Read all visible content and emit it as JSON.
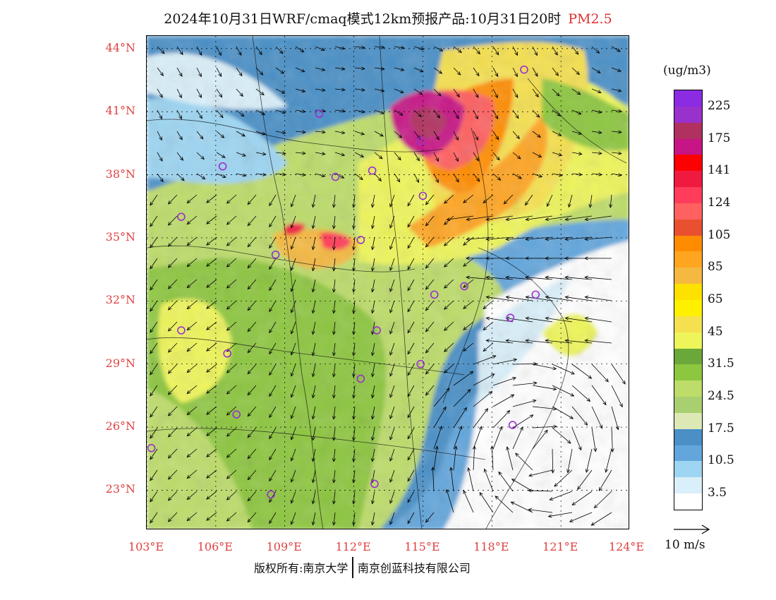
{
  "header": {
    "title": "2024年10月31日WRF/cmaq模式12km预报产品:10月31日20时",
    "pollutant": "PM2.5"
  },
  "map": {
    "lat_labels": [
      "44°N",
      "41°N",
      "38°N",
      "35°N",
      "32°N",
      "29°N",
      "26°N",
      "23°N"
    ],
    "lon_labels": [
      "103°E",
      "106°E",
      "109°E",
      "112°E",
      "115°E",
      "118°E",
      "121°E",
      "124°E"
    ],
    "lat_values": [
      44,
      41,
      38,
      35,
      32,
      29,
      26,
      23
    ],
    "lon_values": [
      103,
      106,
      109,
      112,
      115,
      118,
      121,
      124
    ],
    "extent": {
      "lon_min": 103,
      "lon_max": 124,
      "lat_min": 21.1,
      "lat_max": 44.6
    },
    "stations": [
      [
        119.4,
        43.0
      ],
      [
        110.5,
        40.9
      ],
      [
        114.9,
        39.6
      ],
      [
        106.3,
        38.4
      ],
      [
        111.2,
        37.9
      ],
      [
        112.8,
        38.2
      ],
      [
        115.0,
        37.0
      ],
      [
        104.5,
        36.0
      ],
      [
        112.3,
        34.9
      ],
      [
        108.6,
        34.2
      ],
      [
        115.5,
        32.3
      ],
      [
        116.8,
        32.7
      ],
      [
        119.9,
        32.3
      ],
      [
        118.8,
        31.2
      ],
      [
        104.5,
        30.6
      ],
      [
        113.0,
        30.6
      ],
      [
        106.5,
        29.5
      ],
      [
        114.9,
        29.0
      ],
      [
        112.3,
        28.3
      ],
      [
        118.9,
        26.1
      ],
      [
        106.9,
        26.6
      ],
      [
        103.2,
        25.0
      ],
      [
        108.4,
        22.8
      ],
      [
        112.9,
        23.3
      ]
    ],
    "colors": {
      "sea_clean": "#ffffff",
      "low_blue": "#4a8fc6",
      "green": "#8fc43e",
      "yellow": "#fff040",
      "orange": "#f5a020",
      "red": "#e82020",
      "purple": "#8a2ad0",
      "station_ring": "#9a30d0",
      "label_red": "#e04040"
    }
  },
  "legend": {
    "unit": "(ug/m3)",
    "bins": [
      {
        "color": "#8b2be2",
        "label": "225"
      },
      {
        "color": "#9932cc",
        "label": ""
      },
      {
        "color": "#b03060",
        "label": "175"
      },
      {
        "color": "#c71585",
        "label": ""
      },
      {
        "color": "#ff0000",
        "label": "141"
      },
      {
        "color": "#f01a40",
        "label": ""
      },
      {
        "color": "#ff3c5a",
        "label": "124"
      },
      {
        "color": "#ff6060",
        "label": ""
      },
      {
        "color": "#e85030",
        "label": "105"
      },
      {
        "color": "#ff8c00",
        "label": ""
      },
      {
        "color": "#ffa520",
        "label": "85"
      },
      {
        "color": "#f5b841",
        "label": ""
      },
      {
        "color": "#ffe100",
        "label": "65"
      },
      {
        "color": "#fff000",
        "label": ""
      },
      {
        "color": "#f5e050",
        "label": "45"
      },
      {
        "color": "#eef55a",
        "label": ""
      },
      {
        "color": "#6aa83a",
        "label": "31.5"
      },
      {
        "color": "#8dc63f",
        "label": ""
      },
      {
        "color": "#bddc6a",
        "label": "24.5"
      },
      {
        "color": "#a8d070",
        "label": ""
      },
      {
        "color": "#dde9b5",
        "label": "17.5"
      },
      {
        "color": "#4a8fc6",
        "label": ""
      },
      {
        "color": "#62a6dc",
        "label": "10.5"
      },
      {
        "color": "#9dd5f2",
        "label": ""
      },
      {
        "color": "#d9eff9",
        "label": "3.5"
      },
      {
        "color": "#ffffff",
        "label": ""
      }
    ],
    "wind_label": "10 m/s"
  },
  "footer": {
    "copyright_left": "版权所有:南京大学",
    "copyright_right": "南京创蓝科技有限公司"
  }
}
